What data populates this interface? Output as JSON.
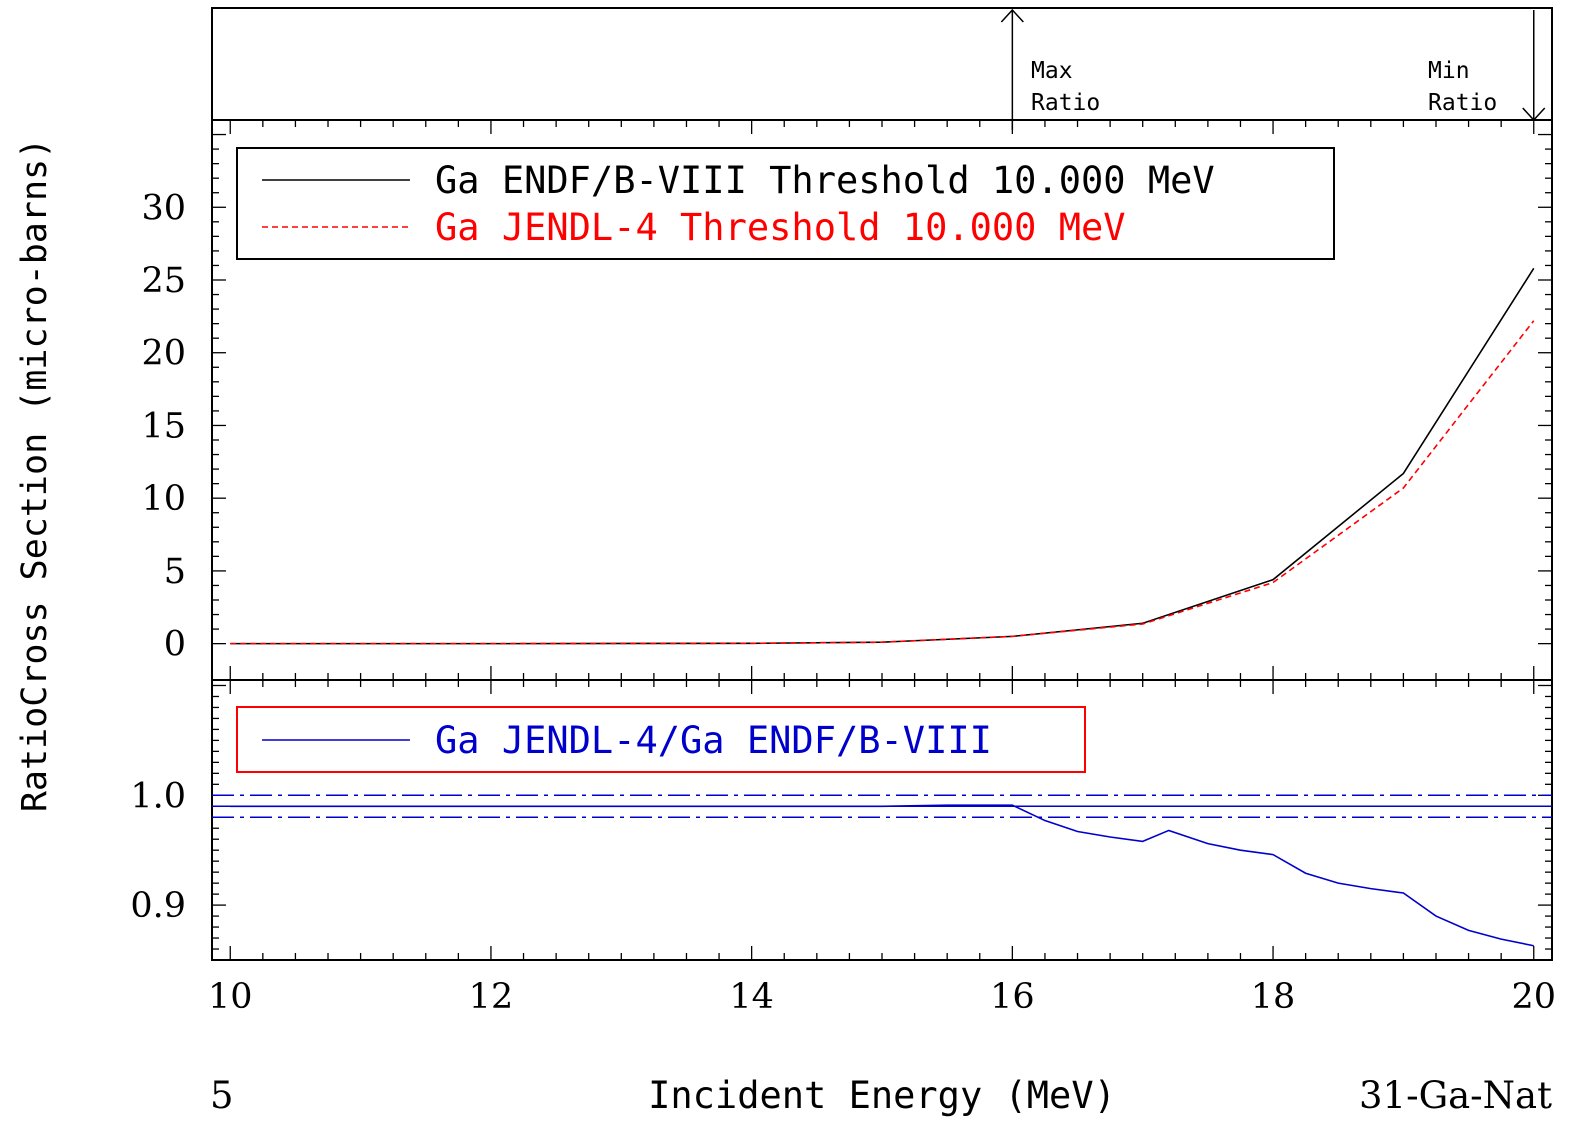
{
  "ylabel_left": "RatioCross Section (micro-barns)",
  "xlabel": "Incident Energy (MeV)",
  "footer_left": "5",
  "footer_right": "31-Ga-Nat",
  "markers": {
    "max_ratio": {
      "line1": "Max",
      "line2": "Ratio",
      "x": 16,
      "direction": "up"
    },
    "min_ratio": {
      "line1": "Min",
      "line2": "Ratio",
      "x": 20,
      "direction": "down"
    }
  },
  "colors": {
    "endf": "#000000",
    "jendl": "#ff0000",
    "ratio": "#0000cc",
    "frame": "#000000"
  },
  "chart_data": [
    {
      "type": "line",
      "xlim": [
        9.86,
        20.14
      ],
      "ylim": [
        -2.5,
        36
      ],
      "xticks": [
        10,
        12,
        14,
        16,
        18,
        20
      ],
      "yticks": [
        0,
        5,
        10,
        15,
        20,
        25,
        30
      ],
      "ytick_labels": [
        "0",
        "5",
        "10",
        "15",
        "20",
        "25",
        "30"
      ],
      "legend": "top-left",
      "series": [
        {
          "name": "Ga ENDF/B-VIII Threshold 10.000 MeV",
          "style": "solid",
          "x": [
            10,
            12,
            14,
            15,
            16,
            17,
            18,
            19,
            20
          ],
          "y": [
            0.0,
            0.0,
            0.02,
            0.1,
            0.5,
            1.4,
            4.4,
            11.7,
            25.8
          ]
        },
        {
          "name": "Ga JENDL-4 Threshold 10.000 MeV",
          "style": "dashed",
          "x": [
            10,
            12,
            14,
            15,
            16,
            17,
            18,
            19,
            20
          ],
          "y": [
            0.0,
            0.0,
            0.02,
            0.1,
            0.5,
            1.35,
            4.2,
            10.7,
            22.2
          ]
        }
      ]
    },
    {
      "type": "line",
      "xlim": [
        9.86,
        20.14
      ],
      "ylim": [
        0.85,
        1.105
      ],
      "xticks": [
        10,
        12,
        14,
        16,
        18,
        20
      ],
      "xtick_labels": [
        "10",
        "12",
        "14",
        "16",
        "18",
        "20"
      ],
      "yticks": [
        0.9,
        1.0
      ],
      "ytick_labels": [
        "0.9",
        "1.0"
      ],
      "legend": "top-left",
      "reference_lines": [
        1.0,
        0.99,
        0.98
      ],
      "series": [
        {
          "name": "Ga JENDL-4/Ga ENDF/B-VIII",
          "x": [
            10,
            12,
            14,
            15,
            15.5,
            16,
            16.25,
            16.5,
            16.75,
            17,
            17.2,
            17.5,
            17.75,
            18,
            18.25,
            18.5,
            18.75,
            19,
            19.25,
            19.5,
            19.75,
            20
          ],
          "y": [
            0.99,
            0.99,
            0.99,
            0.99,
            0.991,
            0.991,
            0.977,
            0.967,
            0.962,
            0.958,
            0.968,
            0.956,
            0.95,
            0.946,
            0.929,
            0.92,
            0.915,
            0.911,
            0.89,
            0.877,
            0.869,
            0.863
          ]
        }
      ]
    }
  ]
}
